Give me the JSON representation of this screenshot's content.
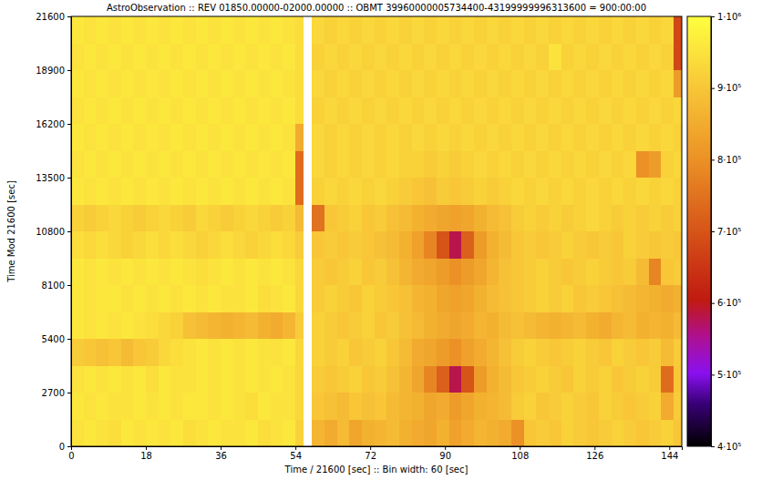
{
  "chart_data": {
    "type": "heatmap",
    "title": "AstroObservation :: REV 01850.00000-02000.00000 :: OBMT 39960000005734400-43199999996313600 = 900:00:00",
    "x_label": "Time / 21600 [sec] :: Bin width: 60 [sec]",
    "y_label": "Time Mod 21600 [sec]",
    "xlim": [
      0,
      147
    ],
    "xticks": [
      0,
      18,
      36,
      54,
      72,
      90,
      108,
      126,
      144
    ],
    "ylim": [
      0,
      21600
    ],
    "yticks": [
      0,
      2700,
      5400,
      8100,
      10800,
      13500,
      16200,
      18900,
      21600
    ],
    "x_edges": [
      0,
      3,
      6,
      9,
      12,
      15,
      18,
      21,
      24,
      27,
      30,
      33,
      36,
      39,
      42,
      45,
      48,
      51,
      54,
      56,
      58,
      61,
      64,
      67,
      70,
      73,
      76,
      79,
      82,
      85,
      88,
      91,
      94,
      97,
      100,
      103,
      106,
      109,
      112,
      115,
      118,
      121,
      124,
      127,
      130,
      133,
      136,
      139,
      142,
      145,
      147
    ],
    "y_edges": [
      0,
      1350,
      2700,
      4050,
      5400,
      6750,
      8100,
      9450,
      10800,
      12150,
      13500,
      14850,
      16200,
      17550,
      18900,
      20250,
      21600
    ],
    "z": [
      [
        950000,
        960000,
        950000,
        940000,
        960000,
        950000,
        960000,
        950000,
        960000,
        940000,
        950000,
        960000,
        950000,
        950000,
        960000,
        940000,
        950000,
        960000,
        920000,
        null,
        870000,
        850000,
        880000,
        840000,
        860000,
        870000,
        880000,
        860000,
        850000,
        840000,
        860000,
        830000,
        850000,
        870000,
        860000,
        850000,
        800000,
        900000,
        910000,
        900000,
        920000,
        910000,
        900000,
        910000,
        920000,
        910000,
        900000,
        910000,
        920000,
        900000
      ],
      [
        960000,
        950000,
        960000,
        950000,
        950000,
        960000,
        950000,
        960000,
        950000,
        960000,
        960000,
        950000,
        960000,
        950000,
        940000,
        960000,
        950000,
        950000,
        930000,
        null,
        900000,
        890000,
        880000,
        900000,
        890000,
        900000,
        880000,
        870000,
        860000,
        840000,
        850000,
        820000,
        840000,
        860000,
        870000,
        880000,
        910000,
        920000,
        900000,
        910000,
        920000,
        910000,
        900000,
        920000,
        910000,
        900000,
        910000,
        920000,
        850000,
        910000
      ],
      [
        950000,
        960000,
        950000,
        960000,
        950000,
        960000,
        940000,
        960000,
        950000,
        950000,
        960000,
        950000,
        960000,
        950000,
        960000,
        950000,
        960000,
        950000,
        930000,
        null,
        910000,
        900000,
        910000,
        920000,
        900000,
        910000,
        890000,
        870000,
        840000,
        780000,
        720000,
        580000,
        700000,
        820000,
        860000,
        880000,
        900000,
        910000,
        920000,
        910000,
        900000,
        920000,
        910000,
        920000,
        900000,
        910000,
        920000,
        910000,
        740000,
        900000
      ],
      [
        910000,
        900000,
        890000,
        900000,
        880000,
        900000,
        910000,
        930000,
        940000,
        950000,
        960000,
        950000,
        960000,
        950000,
        960000,
        950000,
        950000,
        960000,
        930000,
        null,
        920000,
        910000,
        920000,
        900000,
        910000,
        920000,
        900000,
        880000,
        850000,
        840000,
        820000,
        800000,
        830000,
        850000,
        870000,
        890000,
        910000,
        920000,
        910000,
        900000,
        910000,
        920000,
        910000,
        900000,
        920000,
        910000,
        900000,
        910000,
        880000,
        910000
      ],
      [
        960000,
        950000,
        960000,
        950000,
        960000,
        950000,
        940000,
        930000,
        920000,
        890000,
        880000,
        870000,
        860000,
        870000,
        880000,
        860000,
        850000,
        870000,
        910000,
        null,
        920000,
        910000,
        900000,
        910000,
        920000,
        900000,
        910000,
        890000,
        880000,
        860000,
        850000,
        840000,
        850000,
        870000,
        860000,
        880000,
        890000,
        880000,
        870000,
        860000,
        870000,
        880000,
        860000,
        850000,
        870000,
        880000,
        860000,
        870000,
        860000,
        880000
      ],
      [
        960000,
        950000,
        960000,
        960000,
        950000,
        960000,
        950000,
        960000,
        950000,
        960000,
        950000,
        960000,
        950000,
        950000,
        960000,
        940000,
        950000,
        960000,
        930000,
        null,
        910000,
        920000,
        910000,
        900000,
        920000,
        910000,
        900000,
        890000,
        870000,
        860000,
        840000,
        830000,
        840000,
        860000,
        880000,
        890000,
        900000,
        910000,
        920000,
        910000,
        920000,
        900000,
        910000,
        900000,
        890000,
        880000,
        870000,
        860000,
        850000,
        860000
      ],
      [
        960000,
        950000,
        960000,
        950000,
        960000,
        950000,
        960000,
        950000,
        960000,
        950000,
        940000,
        950000,
        960000,
        950000,
        960000,
        950000,
        960000,
        950000,
        930000,
        null,
        910000,
        900000,
        910000,
        920000,
        900000,
        910000,
        890000,
        870000,
        850000,
        840000,
        820000,
        800000,
        820000,
        840000,
        870000,
        890000,
        900000,
        910000,
        920000,
        910000,
        900000,
        910000,
        920000,
        910000,
        900000,
        910000,
        880000,
        780000,
        900000,
        910000
      ],
      [
        940000,
        930000,
        940000,
        930000,
        920000,
        930000,
        940000,
        930000,
        940000,
        930000,
        920000,
        930000,
        940000,
        930000,
        920000,
        930000,
        940000,
        930000,
        910000,
        null,
        900000,
        910000,
        900000,
        910000,
        900000,
        890000,
        880000,
        860000,
        830000,
        780000,
        700000,
        580000,
        720000,
        820000,
        860000,
        880000,
        900000,
        910000,
        900000,
        910000,
        920000,
        910000,
        900000,
        910000,
        900000,
        920000,
        910000,
        900000,
        910000,
        900000
      ],
      [
        920000,
        910000,
        920000,
        930000,
        920000,
        910000,
        920000,
        930000,
        920000,
        910000,
        930000,
        920000,
        910000,
        920000,
        930000,
        920000,
        910000,
        920000,
        880000,
        null,
        750000,
        900000,
        910000,
        920000,
        900000,
        910000,
        890000,
        880000,
        860000,
        850000,
        840000,
        830000,
        840000,
        860000,
        880000,
        890000,
        910000,
        920000,
        910000,
        920000,
        910000,
        920000,
        930000,
        920000,
        910000,
        920000,
        910000,
        920000,
        910000,
        920000
      ],
      [
        960000,
        950000,
        960000,
        950000,
        960000,
        950000,
        960000,
        950000,
        960000,
        950000,
        960000,
        950000,
        960000,
        950000,
        960000,
        950000,
        960000,
        950000,
        740000,
        null,
        920000,
        930000,
        920000,
        930000,
        920000,
        930000,
        920000,
        910000,
        900000,
        890000,
        910000,
        900000,
        910000,
        920000,
        910000,
        920000,
        930000,
        920000,
        930000,
        920000,
        930000,
        920000,
        930000,
        920000,
        930000,
        920000,
        930000,
        920000,
        930000,
        920000
      ],
      [
        950000,
        960000,
        950000,
        960000,
        950000,
        960000,
        950000,
        960000,
        950000,
        960000,
        950000,
        960000,
        950000,
        960000,
        950000,
        960000,
        950000,
        960000,
        740000,
        null,
        930000,
        920000,
        930000,
        920000,
        930000,
        920000,
        930000,
        920000,
        920000,
        910000,
        920000,
        910000,
        920000,
        930000,
        920000,
        930000,
        920000,
        930000,
        920000,
        930000,
        920000,
        930000,
        920000,
        930000,
        920000,
        930000,
        800000,
        820000,
        920000,
        930000
      ],
      [
        960000,
        950000,
        960000,
        950000,
        960000,
        950000,
        960000,
        950000,
        960000,
        950000,
        960000,
        950000,
        960000,
        950000,
        960000,
        950000,
        960000,
        950000,
        850000,
        null,
        930000,
        920000,
        930000,
        920000,
        930000,
        920000,
        930000,
        920000,
        930000,
        920000,
        930000,
        920000,
        930000,
        920000,
        930000,
        920000,
        930000,
        920000,
        930000,
        920000,
        930000,
        920000,
        930000,
        920000,
        930000,
        920000,
        930000,
        920000,
        930000,
        920000
      ],
      [
        950000,
        960000,
        950000,
        960000,
        950000,
        960000,
        950000,
        960000,
        950000,
        960000,
        950000,
        960000,
        950000,
        960000,
        950000,
        960000,
        950000,
        960000,
        940000,
        null,
        920000,
        930000,
        920000,
        930000,
        920000,
        930000,
        920000,
        930000,
        920000,
        930000,
        920000,
        930000,
        920000,
        930000,
        920000,
        930000,
        920000,
        930000,
        920000,
        930000,
        920000,
        930000,
        920000,
        930000,
        920000,
        930000,
        920000,
        930000,
        920000,
        930000
      ],
      [
        960000,
        950000,
        960000,
        950000,
        960000,
        950000,
        960000,
        950000,
        960000,
        950000,
        960000,
        950000,
        960000,
        950000,
        960000,
        950000,
        960000,
        950000,
        940000,
        null,
        930000,
        920000,
        930000,
        920000,
        930000,
        920000,
        930000,
        920000,
        930000,
        920000,
        930000,
        920000,
        930000,
        920000,
        930000,
        920000,
        930000,
        920000,
        930000,
        920000,
        930000,
        920000,
        930000,
        920000,
        930000,
        920000,
        930000,
        920000,
        930000,
        820000
      ],
      [
        950000,
        960000,
        950000,
        960000,
        950000,
        960000,
        950000,
        960000,
        950000,
        960000,
        950000,
        960000,
        950000,
        960000,
        950000,
        960000,
        950000,
        960000,
        940000,
        null,
        920000,
        930000,
        920000,
        930000,
        920000,
        930000,
        920000,
        930000,
        920000,
        930000,
        920000,
        930000,
        920000,
        930000,
        920000,
        930000,
        920000,
        930000,
        920000,
        950000,
        920000,
        930000,
        920000,
        930000,
        920000,
        930000,
        920000,
        930000,
        920000,
        680000
      ],
      [
        960000,
        950000,
        960000,
        950000,
        960000,
        950000,
        960000,
        950000,
        960000,
        950000,
        960000,
        950000,
        960000,
        950000,
        960000,
        950000,
        960000,
        950000,
        940000,
        null,
        930000,
        920000,
        930000,
        920000,
        930000,
        920000,
        930000,
        920000,
        930000,
        920000,
        930000,
        920000,
        930000,
        920000,
        930000,
        920000,
        930000,
        920000,
        930000,
        920000,
        930000,
        920000,
        930000,
        920000,
        930000,
        920000,
        930000,
        920000,
        930000,
        680000
      ]
    ],
    "colorbar_range": [
      400000,
      1000000
    ],
    "colorbar_ticks": [
      {
        "value": 400000,
        "label": "4·10⁵"
      },
      {
        "value": 500000,
        "label": "5·10⁵"
      },
      {
        "value": 600000,
        "label": "6·10⁵"
      },
      {
        "value": 700000,
        "label": "7·10⁵"
      },
      {
        "value": 800000,
        "label": "8·10⁵"
      },
      {
        "value": 900000,
        "label": "9·10⁵"
      },
      {
        "value": 1000000,
        "label": "1·10⁶"
      }
    ]
  }
}
